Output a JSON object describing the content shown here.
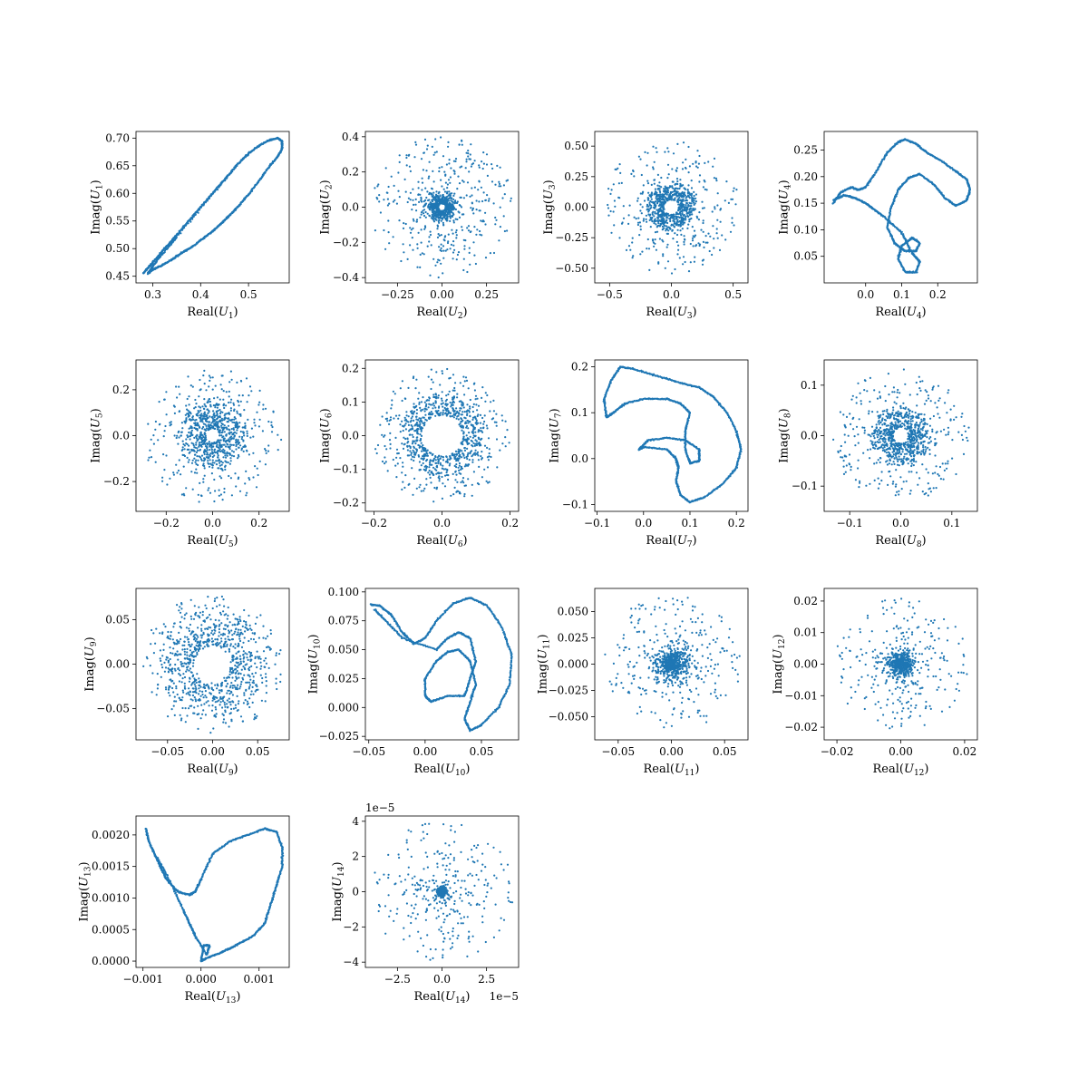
{
  "figure": {
    "color": "#1f77b4"
  },
  "chart_data": [
    {
      "type": "scatter",
      "mode": 1,
      "shape": "loop",
      "xlabel": "Real(U_1)",
      "ylabel": "Imag(U_1)",
      "xlim": [
        0.265,
        0.585
      ],
      "ylim": [
        0.438,
        0.712
      ],
      "xticks": [
        0.3,
        0.4,
        0.5
      ],
      "xticklabels": [
        "0.3",
        "0.4",
        "0.5"
      ],
      "yticks": [
        0.45,
        0.5,
        0.55,
        0.6,
        0.65,
        0.7
      ],
      "yticklabels": [
        "0.45",
        "0.50",
        "0.55",
        "0.60",
        "0.65",
        "0.70"
      ],
      "points": [
        [
          0.28,
          0.455
        ],
        [
          0.29,
          0.465
        ],
        [
          0.3,
          0.475
        ],
        [
          0.32,
          0.495
        ],
        [
          0.34,
          0.515
        ],
        [
          0.36,
          0.535
        ],
        [
          0.38,
          0.555
        ],
        [
          0.4,
          0.575
        ],
        [
          0.42,
          0.595
        ],
        [
          0.44,
          0.615
        ],
        [
          0.46,
          0.635
        ],
        [
          0.48,
          0.655
        ],
        [
          0.5,
          0.672
        ],
        [
          0.52,
          0.685
        ],
        [
          0.54,
          0.695
        ],
        [
          0.56,
          0.7
        ],
        [
          0.57,
          0.695
        ],
        [
          0.57,
          0.68
        ],
        [
          0.56,
          0.665
        ],
        [
          0.54,
          0.645
        ],
        [
          0.52,
          0.62
        ],
        [
          0.5,
          0.598
        ],
        [
          0.48,
          0.578
        ],
        [
          0.46,
          0.56
        ],
        [
          0.44,
          0.543
        ],
        [
          0.42,
          0.528
        ],
        [
          0.4,
          0.515
        ],
        [
          0.38,
          0.502
        ],
        [
          0.36,
          0.492
        ],
        [
          0.34,
          0.48
        ],
        [
          0.32,
          0.47
        ],
        [
          0.3,
          0.462
        ],
        [
          0.29,
          0.455
        ],
        [
          0.31,
          0.48
        ],
        [
          0.35,
          0.52
        ],
        [
          0.47,
          0.645
        ]
      ]
    },
    {
      "type": "scatter",
      "mode": 2,
      "shape": "disk",
      "xlabel": "Real(U_2)",
      "ylabel": "Imag(U_2)",
      "xlim": [
        -0.43,
        0.43
      ],
      "ylim": [
        -0.43,
        0.43
      ],
      "xticks": [
        -0.25,
        0,
        0.25
      ],
      "xticklabels": [
        "−0.25",
        "0.00",
        "0.25"
      ],
      "yticks": [
        -0.4,
        -0.2,
        0,
        0.2,
        0.4
      ],
      "yticklabels": [
        "−0.4",
        "−0.2",
        "0.0",
        "0.2",
        "0.4"
      ],
      "center": [
        0,
        0
      ],
      "radius_outer": 0.4,
      "radius_hole": 0.02,
      "density": "central"
    },
    {
      "type": "scatter",
      "mode": 3,
      "shape": "ring+disk",
      "xlabel": "Real(U_3)",
      "ylabel": "Imag(U_3)",
      "xlim": [
        -0.62,
        0.62
      ],
      "ylim": [
        -0.62,
        0.62
      ],
      "xticks": [
        -0.5,
        0,
        0.5
      ],
      "xticklabels": [
        "−0.5",
        "0.0",
        "0.5"
      ],
      "yticks": [
        -0.5,
        -0.25,
        0,
        0.25,
        0.5
      ],
      "yticklabels": [
        "−0.50",
        "−0.25",
        "0.00",
        "0.25",
        "0.50"
      ],
      "center": [
        0,
        0
      ],
      "radius_outer": 0.55,
      "ring_radius": [
        0.06,
        0.2
      ]
    },
    {
      "type": "scatter",
      "mode": 4,
      "shape": "curve",
      "xlabel": "Real(U_4)",
      "ylabel": "Imag(U_4)",
      "xlim": [
        -0.115,
        0.31
      ],
      "ylim": [
        0.0,
        0.285
      ],
      "xticks": [
        0,
        0.1,
        0.2
      ],
      "xticklabels": [
        "0.0",
        "0.1",
        "0.2"
      ],
      "yticks": [
        0.05,
        0.1,
        0.15,
        0.2,
        0.25
      ],
      "yticklabels": [
        "0.05",
        "0.10",
        "0.15",
        "0.20",
        "0.25"
      ],
      "points": [
        [
          -0.09,
          0.15
        ],
        [
          -0.07,
          0.17
        ],
        [
          -0.04,
          0.18
        ],
        [
          -0.02,
          0.175
        ],
        [
          0.0,
          0.18
        ],
        [
          0.03,
          0.21
        ],
        [
          0.06,
          0.245
        ],
        [
          0.09,
          0.265
        ],
        [
          0.11,
          0.27
        ],
        [
          0.14,
          0.262
        ],
        [
          0.17,
          0.245
        ],
        [
          0.21,
          0.23
        ],
        [
          0.25,
          0.21
        ],
        [
          0.28,
          0.195
        ],
        [
          0.29,
          0.175
        ],
        [
          0.28,
          0.155
        ],
        [
          0.25,
          0.145
        ],
        [
          0.22,
          0.16
        ],
        [
          0.19,
          0.185
        ],
        [
          0.15,
          0.205
        ],
        [
          0.12,
          0.198
        ],
        [
          0.09,
          0.175
        ],
        [
          0.07,
          0.14
        ],
        [
          0.06,
          0.105
        ],
        [
          0.08,
          0.075
        ],
        [
          0.11,
          0.06
        ],
        [
          0.14,
          0.06
        ],
        [
          0.15,
          0.075
        ],
        [
          0.13,
          0.085
        ],
        [
          0.1,
          0.07
        ],
        [
          0.09,
          0.045
        ],
        [
          0.11,
          0.02
        ],
        [
          0.14,
          0.02
        ],
        [
          0.15,
          0.04
        ],
        [
          0.13,
          0.055
        ],
        [
          0.1,
          0.095
        ],
        [
          0.05,
          0.125
        ],
        [
          0.02,
          0.14
        ],
        [
          0.0,
          0.15
        ],
        [
          -0.03,
          0.16
        ],
        [
          -0.06,
          0.165
        ],
        [
          -0.09,
          0.155
        ]
      ]
    },
    {
      "type": "scatter",
      "mode": 5,
      "shape": "ring+disk",
      "xlabel": "Real(U_5)",
      "ylabel": "Imag(U_5)",
      "xlim": [
        -0.33,
        0.33
      ],
      "ylim": [
        -0.33,
        0.33
      ],
      "xticks": [
        -0.2,
        0,
        0.2
      ],
      "xticklabels": [
        "−0.2",
        "0.0",
        "0.2"
      ],
      "yticks": [
        -0.2,
        0,
        0.2
      ],
      "yticklabels": [
        "−0.2",
        "0.0",
        "0.2"
      ],
      "center": [
        0,
        0
      ],
      "radius_outer": 0.3,
      "ring_radius": [
        0.03,
        0.15
      ]
    },
    {
      "type": "scatter",
      "mode": 6,
      "shape": "ring+disk",
      "xlabel": "Real(U_6)",
      "ylabel": "Imag(U_6)",
      "xlim": [
        -0.225,
        0.225
      ],
      "ylim": [
        -0.225,
        0.225
      ],
      "xticks": [
        -0.2,
        0,
        0.2
      ],
      "xticklabels": [
        "−0.2",
        "0.0",
        "0.2"
      ],
      "yticks": [
        -0.2,
        -0.1,
        0,
        0.1,
        0.2
      ],
      "yticklabels": [
        "−0.2",
        "−0.1",
        "0.0",
        "0.1",
        "0.2"
      ],
      "center": [
        0,
        0
      ],
      "radius_outer": 0.2,
      "ring_radius": [
        0.06,
        0.12
      ]
    },
    {
      "type": "scatter",
      "mode": 7,
      "shape": "curve",
      "xlabel": "Real(U_7)",
      "ylabel": "Imag(U_7)",
      "xlim": [
        -0.105,
        0.225
      ],
      "ylim": [
        -0.115,
        0.215
      ],
      "xticks": [
        -0.1,
        0,
        0.1,
        0.2
      ],
      "xticklabels": [
        "−0.1",
        "0.0",
        "0.1",
        "0.2"
      ],
      "yticks": [
        -0.1,
        0,
        0.1,
        0.2
      ],
      "yticklabels": [
        "−0.1",
        "0.0",
        "0.1",
        "0.2"
      ],
      "points": [
        [
          -0.08,
          0.09
        ],
        [
          -0.085,
          0.13
        ],
        [
          -0.07,
          0.17
        ],
        [
          -0.05,
          0.2
        ],
        [
          -0.02,
          0.195
        ],
        [
          0.03,
          0.18
        ],
        [
          0.08,
          0.165
        ],
        [
          0.12,
          0.155
        ],
        [
          0.15,
          0.135
        ],
        [
          0.18,
          0.1
        ],
        [
          0.2,
          0.06
        ],
        [
          0.21,
          0.02
        ],
        [
          0.2,
          -0.02
        ],
        [
          0.17,
          -0.055
        ],
        [
          0.13,
          -0.085
        ],
        [
          0.1,
          -0.095
        ],
        [
          0.08,
          -0.08
        ],
        [
          0.07,
          -0.05
        ],
        [
          0.075,
          -0.02
        ],
        [
          0.07,
          0.0
        ],
        [
          0.05,
          0.02
        ],
        [
          0.0,
          0.025
        ],
        [
          -0.01,
          0.02
        ],
        [
          0.01,
          0.04
        ],
        [
          0.05,
          0.045
        ],
        [
          0.09,
          0.04
        ],
        [
          0.12,
          0.02
        ],
        [
          0.12,
          -0.005
        ],
        [
          0.1,
          -0.01
        ],
        [
          0.09,
          0.02
        ],
        [
          0.09,
          0.06
        ],
        [
          0.1,
          0.1
        ],
        [
          0.08,
          0.12
        ],
        [
          0.05,
          0.13
        ],
        [
          0.0,
          0.13
        ],
        [
          -0.04,
          0.12
        ],
        [
          -0.065,
          0.1
        ],
        [
          -0.08,
          0.09
        ]
      ]
    },
    {
      "type": "scatter",
      "mode": 8,
      "shape": "ring+disk",
      "xlabel": "Real(U_8)",
      "ylabel": "Imag(U_8)",
      "xlim": [
        -0.15,
        0.15
      ],
      "ylim": [
        -0.15,
        0.15
      ],
      "xticks": [
        -0.1,
        0,
        0.1
      ],
      "xticklabels": [
        "−0.1",
        "0.0",
        "0.1"
      ],
      "yticks": [
        -0.1,
        0,
        0.1
      ],
      "yticklabels": [
        "−0.1",
        "0.0",
        "0.1"
      ],
      "center": [
        0,
        0
      ],
      "radius_outer": 0.135,
      "ring_radius": [
        0.015,
        0.06
      ]
    },
    {
      "type": "scatter",
      "mode": 9,
      "shape": "ring+disk",
      "xlabel": "Real(U_9)",
      "ylabel": "Imag(U_9)",
      "xlim": [
        -0.085,
        0.085
      ],
      "ylim": [
        -0.085,
        0.085
      ],
      "xticks": [
        -0.05,
        0,
        0.05
      ],
      "xticklabels": [
        "−0.05",
        "0.00",
        "0.05"
      ],
      "yticks": [
        -0.05,
        0,
        0.05
      ],
      "yticklabels": [
        "−0.05",
        "0.00",
        "0.05"
      ],
      "center": [
        0,
        0
      ],
      "radius_outer": 0.078,
      "ring_radius": [
        0.02,
        0.06
      ]
    },
    {
      "type": "scatter",
      "mode": 10,
      "shape": "curve",
      "xlabel": "Real(U_10)",
      "ylabel": "Imag(U_10)",
      "xlim": [
        -0.053,
        0.083
      ],
      "ylim": [
        -0.028,
        0.103
      ],
      "xticks": [
        -0.05,
        0,
        0.05
      ],
      "xticklabels": [
        "−0.05",
        "0.00",
        "0.05"
      ],
      "yticks": [
        -0.025,
        0,
        0.025,
        0.05,
        0.075,
        0.1
      ],
      "yticklabels": [
        "−0.025",
        "0.000",
        "0.025",
        "0.050",
        "0.075",
        "0.100"
      ],
      "points": [
        [
          -0.048,
          0.089
        ],
        [
          -0.04,
          0.088
        ],
        [
          -0.03,
          0.08
        ],
        [
          -0.02,
          0.065
        ],
        [
          -0.01,
          0.055
        ],
        [
          0.0,
          0.06
        ],
        [
          0.01,
          0.075
        ],
        [
          0.025,
          0.09
        ],
        [
          0.04,
          0.095
        ],
        [
          0.055,
          0.088
        ],
        [
          0.068,
          0.07
        ],
        [
          0.077,
          0.045
        ],
        [
          0.075,
          0.02
        ],
        [
          0.065,
          0.0
        ],
        [
          0.05,
          -0.015
        ],
        [
          0.04,
          -0.02
        ],
        [
          0.035,
          -0.01
        ],
        [
          0.04,
          0.005
        ],
        [
          0.045,
          0.02
        ],
        [
          0.04,
          0.04
        ],
        [
          0.03,
          0.05
        ],
        [
          0.02,
          0.048
        ],
        [
          0.01,
          0.04
        ],
        [
          0.0,
          0.025
        ],
        [
          0.0,
          0.01
        ],
        [
          0.005,
          0.005
        ],
        [
          0.02,
          0.01
        ],
        [
          0.035,
          0.01
        ],
        [
          0.04,
          0.025
        ],
        [
          0.045,
          0.04
        ],
        [
          0.04,
          0.06
        ],
        [
          0.03,
          0.065
        ],
        [
          0.02,
          0.06
        ],
        [
          0.01,
          0.05
        ],
        [
          -0.02,
          0.06
        ],
        [
          -0.035,
          0.075
        ],
        [
          -0.045,
          0.085
        ]
      ]
    },
    {
      "type": "scatter",
      "mode": 11,
      "shape": "disk",
      "xlabel": "Real(U_11)",
      "ylabel": "Imag(U_11)",
      "xlim": [
        -0.072,
        0.072
      ],
      "ylim": [
        -0.072,
        0.072
      ],
      "xticks": [
        -0.05,
        0,
        0.05
      ],
      "xticklabels": [
        "−0.05",
        "0.00",
        "0.05"
      ],
      "yticks": [
        -0.05,
        -0.025,
        0,
        0.025,
        0.05
      ],
      "yticklabels": [
        "−0.050",
        "−0.025",
        "0.000",
        "0.025",
        "0.050"
      ],
      "center": [
        0,
        0
      ],
      "radius_outer": 0.065,
      "core_radius": 0.03
    },
    {
      "type": "scatter",
      "mode": 12,
      "shape": "disk",
      "xlabel": "Real(U_12)",
      "ylabel": "Imag(U_12)",
      "xlim": [
        -0.024,
        0.024
      ],
      "ylim": [
        -0.024,
        0.024
      ],
      "xticks": [
        -0.02,
        0,
        0.02
      ],
      "xticklabels": [
        "−0.02",
        "0.00",
        "0.02"
      ],
      "yticks": [
        -0.02,
        -0.01,
        0,
        0.01,
        0.02
      ],
      "yticklabels": [
        "−0.02",
        "−0.01",
        "0.00",
        "0.01",
        "0.02"
      ],
      "center": [
        0,
        0
      ],
      "radius_outer": 0.021,
      "core_radius": 0.007
    },
    {
      "type": "scatter",
      "mode": 13,
      "shape": "curve",
      "xlabel": "Real(U_13)",
      "ylabel": "Imag(U_13)",
      "xlim": [
        -0.00112,
        0.00152
      ],
      "ylim": [
        -0.0001,
        0.0023
      ],
      "xticks": [
        -0.001,
        0,
        0.001
      ],
      "xticklabels": [
        "−0.001",
        "0.000",
        "0.001"
      ],
      "yticks": [
        0,
        0.0005,
        0.001,
        0.0015,
        0.002
      ],
      "yticklabels": [
        "0.0000",
        "0.0005",
        "0.0010",
        "0.0015",
        "0.0020"
      ],
      "points": [
        [
          -0.00095,
          0.0021
        ],
        [
          -0.0009,
          0.0019
        ],
        [
          -0.0008,
          0.0017
        ],
        [
          -0.0007,
          0.0015
        ],
        [
          -0.0006,
          0.0013
        ],
        [
          -0.0004,
          0.0011
        ],
        [
          -0.0002,
          0.00105
        ],
        [
          -0.0001,
          0.0011
        ],
        [
          0.0,
          0.0013
        ],
        [
          0.0002,
          0.0017
        ],
        [
          0.0005,
          0.0019
        ],
        [
          0.0008,
          0.002
        ],
        [
          0.0011,
          0.0021
        ],
        [
          0.0013,
          0.00205
        ],
        [
          0.0014,
          0.0018
        ],
        [
          0.0014,
          0.0015
        ],
        [
          0.0013,
          0.0012
        ],
        [
          0.0012,
          0.0009
        ],
        [
          0.0011,
          0.0006
        ],
        [
          0.0009,
          0.0004
        ],
        [
          0.0007,
          0.0003
        ],
        [
          0.0005,
          0.0002
        ],
        [
          0.0003,
          0.00012
        ],
        [
          0.0001,
          5e-05
        ],
        [
          0.0,
          0.0
        ],
        [
          5e-05,
          0.00025
        ],
        [
          0.00015,
          0.00025
        ],
        [
          0.0001,
          0.0001
        ],
        [
          -0.0001,
          0.0004
        ],
        [
          -0.0002,
          0.0006
        ],
        [
          -0.0003,
          0.0008
        ],
        [
          -0.0005,
          0.0012
        ],
        [
          -0.00075,
          0.00165
        ]
      ]
    },
    {
      "type": "scatter",
      "mode": 14,
      "shape": "disk",
      "xlabel": "Real(U_14)",
      "ylabel": "Imag(U_14)",
      "xlim": [
        -4.3e-05,
        4.3e-05
      ],
      "ylim": [
        -4.3e-05,
        4.3e-05
      ],
      "xticks": [
        -2.5e-05,
        0,
        2.5e-05
      ],
      "xticklabels": [
        "−2.5",
        "0.0",
        "2.5"
      ],
      "yticks": [
        -4e-05,
        -2e-05,
        0,
        2e-05,
        4e-05
      ],
      "yticklabels": [
        "−4",
        "−2",
        "0",
        "2",
        "4"
      ],
      "offset_label": "1e−5",
      "center": [
        0,
        0
      ],
      "radius_outer": 4e-05,
      "core_radius": 4e-06
    }
  ]
}
